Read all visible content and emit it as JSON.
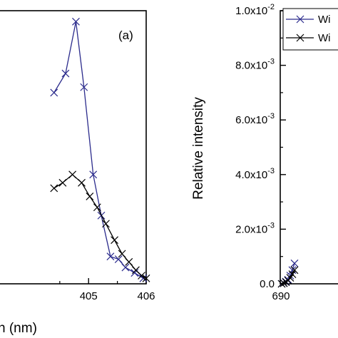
{
  "chart_data": [
    {
      "type": "line",
      "panel_label": "(a)",
      "xlabel_visible": "h (nm)",
      "ylabel": "",
      "xlim": [
        403.4,
        406.0
      ],
      "ylim": [
        0,
        1.0
      ],
      "x_ticks": [
        {
          "value": 405,
          "label": "405"
        },
        {
          "value": 406,
          "label": "406"
        }
      ],
      "series": [
        {
          "color": "#2b2b8c",
          "marker": "x",
          "points": [
            [
              404.4,
              0.7
            ],
            [
              404.6,
              0.77
            ],
            [
              404.78,
              0.96
            ],
            [
              404.92,
              0.72
            ],
            [
              405.08,
              0.4
            ],
            [
              405.22,
              0.25
            ],
            [
              405.38,
              0.1
            ],
            [
              405.52,
              0.09
            ],
            [
              405.64,
              0.06
            ],
            [
              405.8,
              0.04
            ],
            [
              405.95,
              0.02
            ]
          ]
        },
        {
          "color": "#000000",
          "marker": "x",
          "points": [
            [
              404.4,
              0.35
            ],
            [
              404.55,
              0.37
            ],
            [
              404.72,
              0.4
            ],
            [
              404.88,
              0.37
            ],
            [
              405.02,
              0.32
            ],
            [
              405.15,
              0.28
            ],
            [
              405.3,
              0.22
            ],
            [
              405.45,
              0.16
            ],
            [
              405.58,
              0.11
            ],
            [
              405.7,
              0.08
            ],
            [
              405.82,
              0.05
            ],
            [
              405.92,
              0.03
            ],
            [
              406.0,
              0.02
            ]
          ]
        }
      ]
    },
    {
      "type": "line",
      "xlabel": "",
      "ylabel": "Relative intensity",
      "xlim": [
        690,
        700
      ],
      "ylim": [
        0,
        0.01
      ],
      "x_ticks": [
        {
          "value": 690,
          "label": "690"
        }
      ],
      "y_ticks": [
        {
          "value": 0.0,
          "label": "0.0"
        },
        {
          "value": 0.002,
          "label": "2.0x10",
          "exp": "-3"
        },
        {
          "value": 0.004,
          "label": "4.0x10",
          "exp": "-3"
        },
        {
          "value": 0.006,
          "label": "6.0x10",
          "exp": "-3"
        },
        {
          "value": 0.008,
          "label": "8.0x10",
          "exp": "-3"
        },
        {
          "value": 0.01,
          "label": "1.0x10",
          "exp": "-2"
        }
      ],
      "legend": {
        "position": "top-right",
        "entries": [
          "Wi",
          "Wi"
        ]
      },
      "series": [
        {
          "color": "#2b2b8c",
          "marker": "x",
          "points": [
            [
              690.2,
              0.0
            ],
            [
              690.5,
              3e-05
            ],
            [
              690.8,
              8e-05
            ],
            [
              691.1,
              0.00015
            ],
            [
              691.4,
              0.0003
            ],
            [
              691.7,
              0.0005
            ],
            [
              692.0,
              0.00075
            ]
          ]
        },
        {
          "color": "#000000",
          "marker": "x",
          "points": [
            [
              690.2,
              0.0
            ],
            [
              690.5,
              2e-05
            ],
            [
              690.8,
              6e-05
            ],
            [
              691.1,
              0.00012
            ],
            [
              691.4,
              0.00022
            ],
            [
              691.7,
              0.00035
            ],
            [
              692.0,
              0.0005
            ]
          ]
        }
      ]
    }
  ]
}
